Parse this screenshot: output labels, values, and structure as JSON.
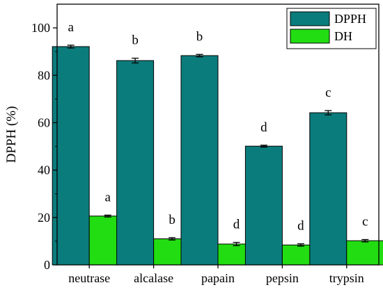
{
  "chart_data": {
    "type": "bar",
    "title": "",
    "xlabel": "",
    "ylabel": "DPPH (%)",
    "ylim": [
      0,
      110
    ],
    "yticks": [
      0,
      20,
      40,
      60,
      80,
      100
    ],
    "grid": false,
    "legend_position": "top-right",
    "categories": [
      "neutrase",
      "alcalase",
      "papain",
      "pepsin",
      "trypsin"
    ],
    "series": [
      {
        "name": "DPPH",
        "color": "#0b7c7c",
        "values": [
          92.1,
          86.2,
          88.3,
          50.1,
          64.2
        ],
        "errors": [
          0.6,
          1.0,
          0.5,
          0.4,
          0.9
        ],
        "letters": [
          "a",
          "b",
          "b",
          "d",
          "c"
        ]
      },
      {
        "name": "DH",
        "color": "#22dd11",
        "values": [
          20.6,
          11.0,
          8.8,
          8.4,
          10.2
        ],
        "errors": [
          0.4,
          0.5,
          0.7,
          0.5,
          0.5
        ],
        "letters": [
          "a",
          "b",
          "d",
          "d",
          "c"
        ]
      }
    ]
  }
}
